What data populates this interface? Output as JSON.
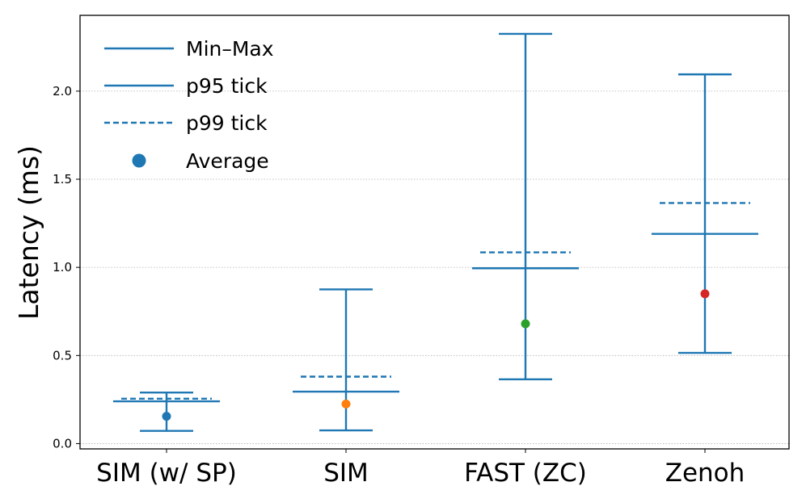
{
  "chart_data": {
    "type": "errorbar",
    "title": "",
    "xlabel": "",
    "ylabel": "Latency (ms)",
    "ylim": [
      -0.03,
      2.43
    ],
    "yticks": [
      0.0,
      0.5,
      1.0,
      1.5,
      2.0
    ],
    "ytick_labels": [
      "0.0",
      "0.5",
      "1.0",
      "1.5",
      "2.0"
    ],
    "grid": "horizontal dotted",
    "legend_position": "top-left",
    "legend": [
      {
        "key": "minmax",
        "label": "Min–Max"
      },
      {
        "key": "p95",
        "label": "p95 tick"
      },
      {
        "key": "p99",
        "label": "p99 tick"
      },
      {
        "key": "avg",
        "label": "Average"
      }
    ],
    "categories": [
      "SIM (w/ SP)",
      "SIM",
      "FAST (ZC)",
      "Zenoh"
    ],
    "series": [
      {
        "category": "SIM (w/ SP)",
        "min": 0.072,
        "max": 0.29,
        "p95": 0.24,
        "p99": 0.255,
        "avg": 0.155,
        "avg_color": "#1f77b4"
      },
      {
        "category": "SIM",
        "min": 0.075,
        "max": 0.875,
        "p95": 0.295,
        "p99": 0.38,
        "avg": 0.225,
        "avg_color": "#ff7f0e"
      },
      {
        "category": "FAST (ZC)",
        "min": 0.365,
        "max": 2.325,
        "p95": 0.995,
        "p99": 1.085,
        "avg": 0.68,
        "avg_color": "#2ca02c"
      },
      {
        "category": "Zenoh",
        "min": 0.515,
        "max": 2.095,
        "p95": 1.19,
        "p99": 1.365,
        "avg": 0.85,
        "avg_color": "#d62728"
      }
    ],
    "line_color": "#1f77b4"
  }
}
